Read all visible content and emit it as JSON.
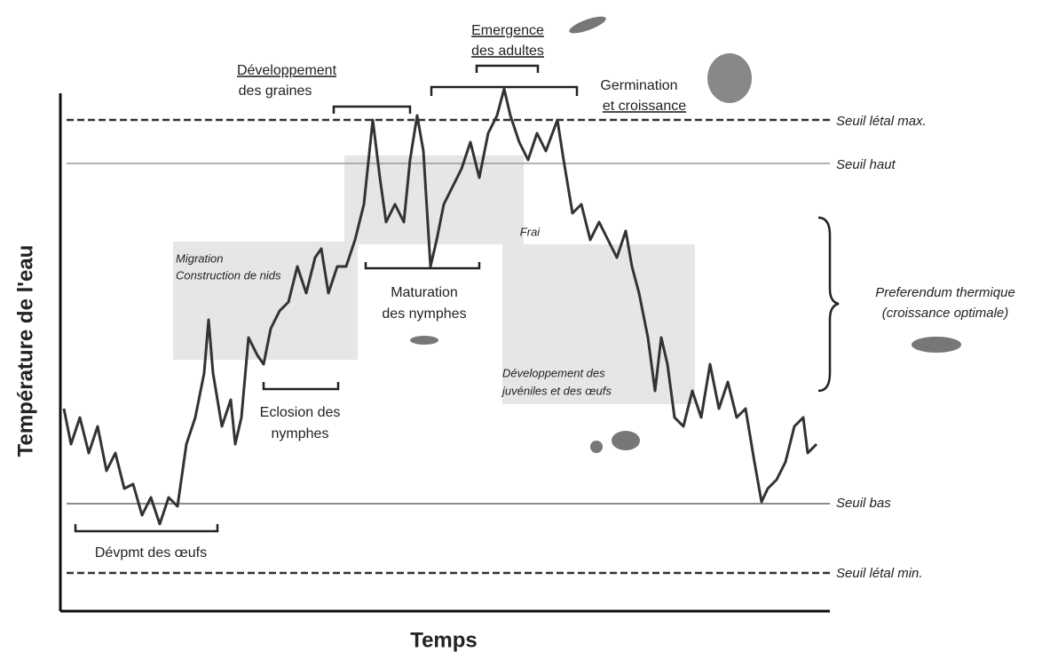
{
  "title_axis": {
    "y": "Température de l'eau",
    "x": "Temps"
  },
  "thresholds": [
    "Seuil létal max.",
    "Seuil haut",
    "Seuil bas",
    "Seuil létal min."
  ],
  "annotations": {
    "graines": [
      "Développement",
      "des graines"
    ],
    "emergence": [
      "Emergence",
      "des adultes"
    ],
    "germination": [
      "Germination",
      "et croissance"
    ],
    "migration": [
      "Migration",
      "Construction de nids"
    ],
    "maturation": [
      "Maturation",
      "des nymphes"
    ],
    "eclosion": [
      "Eclosion des",
      "nymphes"
    ],
    "frai": "Frai",
    "juveniles": [
      "Développement des",
      "juvéniles et des œufs"
    ],
    "preferendum": [
      "Preferendum thermique",
      "(croissance optimale)"
    ],
    "oeufs": "Dévpmt des œufs"
  }
}
